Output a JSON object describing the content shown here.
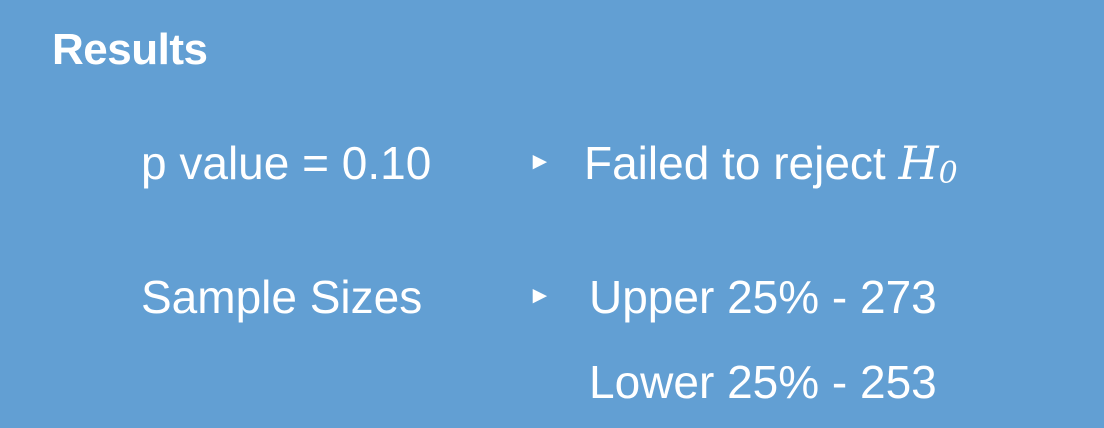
{
  "title": "Results",
  "rows": [
    {
      "label": "p value = 0.10",
      "arrow": "►",
      "result_text": "Failed to reject",
      "result_math_var": "H",
      "result_math_sub": "0"
    },
    {
      "label": "Sample Sizes",
      "arrow": "►",
      "result_text": "Upper 25% - 273"
    },
    {
      "result_text": "Lower 25% - 253"
    }
  ],
  "colors": {
    "background": "#629fd3",
    "text": "#ffffff"
  },
  "icons": {
    "arrow": "triangle-right-icon"
  }
}
